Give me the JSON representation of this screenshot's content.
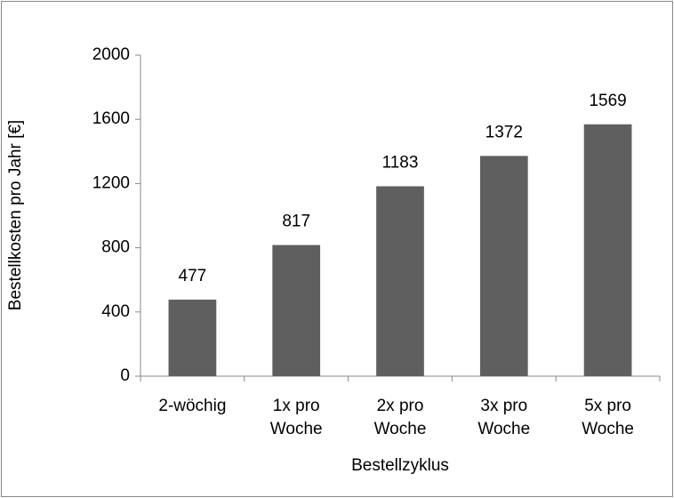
{
  "chart_data": {
    "type": "bar",
    "xlabel": "Bestellzyklus",
    "ylabel": "Bestellkosten pro Jahr [€]",
    "categories": [
      "2-wöchig",
      "1x pro\nWoche",
      "2x pro\nWoche",
      "3x pro\nWoche",
      "5x pro\nWoche"
    ],
    "values": [
      477,
      817,
      1183,
      1372,
      1569
    ],
    "color": "#5f5f5f",
    "ylim": [
      0,
      2000
    ],
    "yticks": [
      0,
      400,
      800,
      1200,
      1600,
      2000
    ],
    "grid": false
  }
}
